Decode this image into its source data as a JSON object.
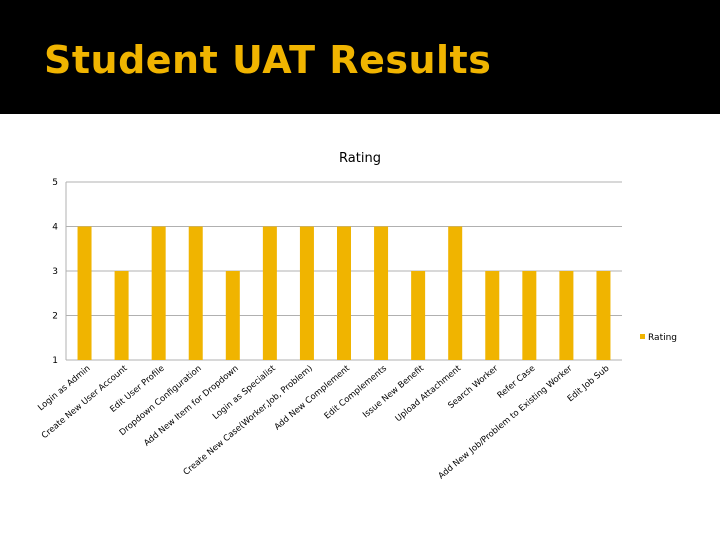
{
  "slide": {
    "title": "Student UAT Results",
    "background_color": "#000000",
    "title_color": "#f0b400"
  },
  "chart_data": {
    "type": "bar",
    "title": "Rating",
    "xlabel": "",
    "ylabel": "",
    "ylim": [
      1,
      5
    ],
    "yticks": [
      1,
      2,
      3,
      4,
      5
    ],
    "grid": true,
    "legend": "right",
    "bar_color": "#f0b400",
    "categories": [
      "Login as Admin",
      "Create New User Account",
      "Edit User Profile",
      "Dropdown Configuration",
      "Add New Item for Dropdown",
      "Login as Specialist",
      "Create New Case(Worker,Job, Problem)",
      "Add New Complement",
      "Edit Complements",
      "Issue New Benefit",
      "Upload Attachment",
      "Search Worker",
      "Refer Case",
      "Add New Job/Problem to Existing Worker",
      "Edit Job Sub"
    ],
    "series": [
      {
        "name": "Rating",
        "values": [
          4,
          3,
          4,
          4,
          3,
          4,
          4,
          4,
          4,
          3,
          4,
          3,
          3,
          3,
          3
        ]
      }
    ]
  }
}
